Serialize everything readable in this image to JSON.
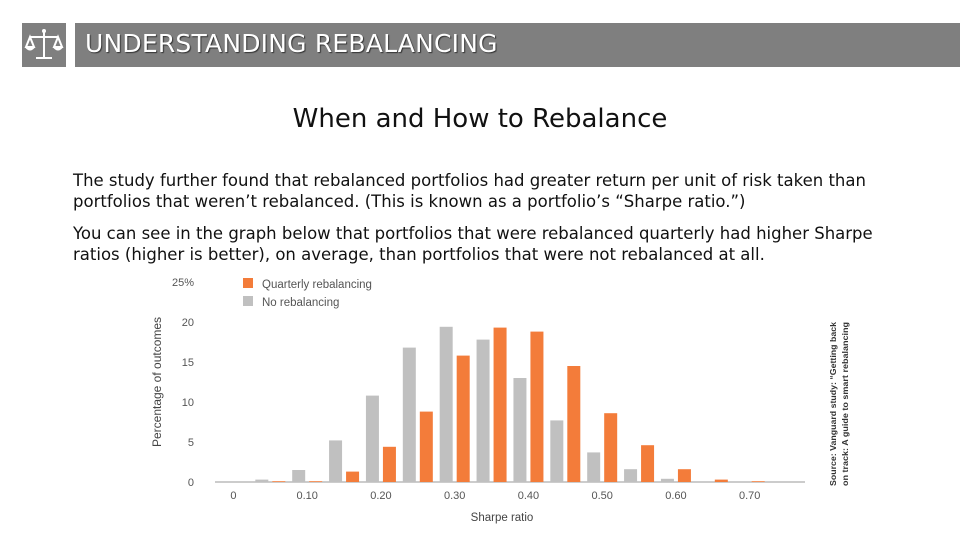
{
  "header": {
    "title": "UNDERSTANDING REBALANCING",
    "logo_icon": "scales-of-justice-icon"
  },
  "subtitle": "When and How to Rebalance",
  "paragraph1": "The study further found that rebalanced portfolios had greater return per unit of risk taken than portfolios that weren’t rebalanced. (This is known as a portfolio’s “Sharpe ratio.”)",
  "paragraph2": "You can see in the graph below that portfolios that were rebalanced quarterly had higher Sharpe ratios (higher is better), on average, than portfolios that were not rebalanced at all.",
  "source_note": {
    "line1": "Source: Vanguard study: “Getting back",
    "line2": "on track: A guide to smart rebalancing"
  },
  "chart_data": {
    "type": "bar",
    "xlabel": "Sharpe ratio",
    "ylabel": "Percentage of outcomes",
    "ylim": [
      0,
      25
    ],
    "y_ticks": [
      "0",
      "5",
      "10",
      "15",
      "20",
      "25%"
    ],
    "x_tick_labels": [
      "0",
      "0.10",
      "0.20",
      "0.30",
      "0.40",
      "0.50",
      "0.60",
      "0.70"
    ],
    "categories": [
      "0",
      "0.05",
      "0.10",
      "0.15",
      "0.20",
      "0.25",
      "0.30",
      "0.35",
      "0.40",
      "0.45",
      "0.50",
      "0.55",
      "0.60",
      "0.65",
      "0.70",
      "0.75"
    ],
    "series": [
      {
        "name": "No rebalancing",
        "color": "#c0c0c0",
        "values": [
          0.1,
          0.3,
          1.5,
          5.2,
          10.8,
          16.8,
          19.4,
          17.8,
          13.0,
          7.7,
          3.7,
          1.6,
          0.4,
          0.1,
          0.1,
          0
        ]
      },
      {
        "name": "Quarterly rebalancing",
        "color": "#f37c3a",
        "values": [
          0,
          0.1,
          0.1,
          1.3,
          4.4,
          8.8,
          15.8,
          19.3,
          18.8,
          14.5,
          8.6,
          4.6,
          1.6,
          0.3,
          0.1,
          0
        ]
      }
    ],
    "legend_position": "top-left",
    "grid": false
  }
}
